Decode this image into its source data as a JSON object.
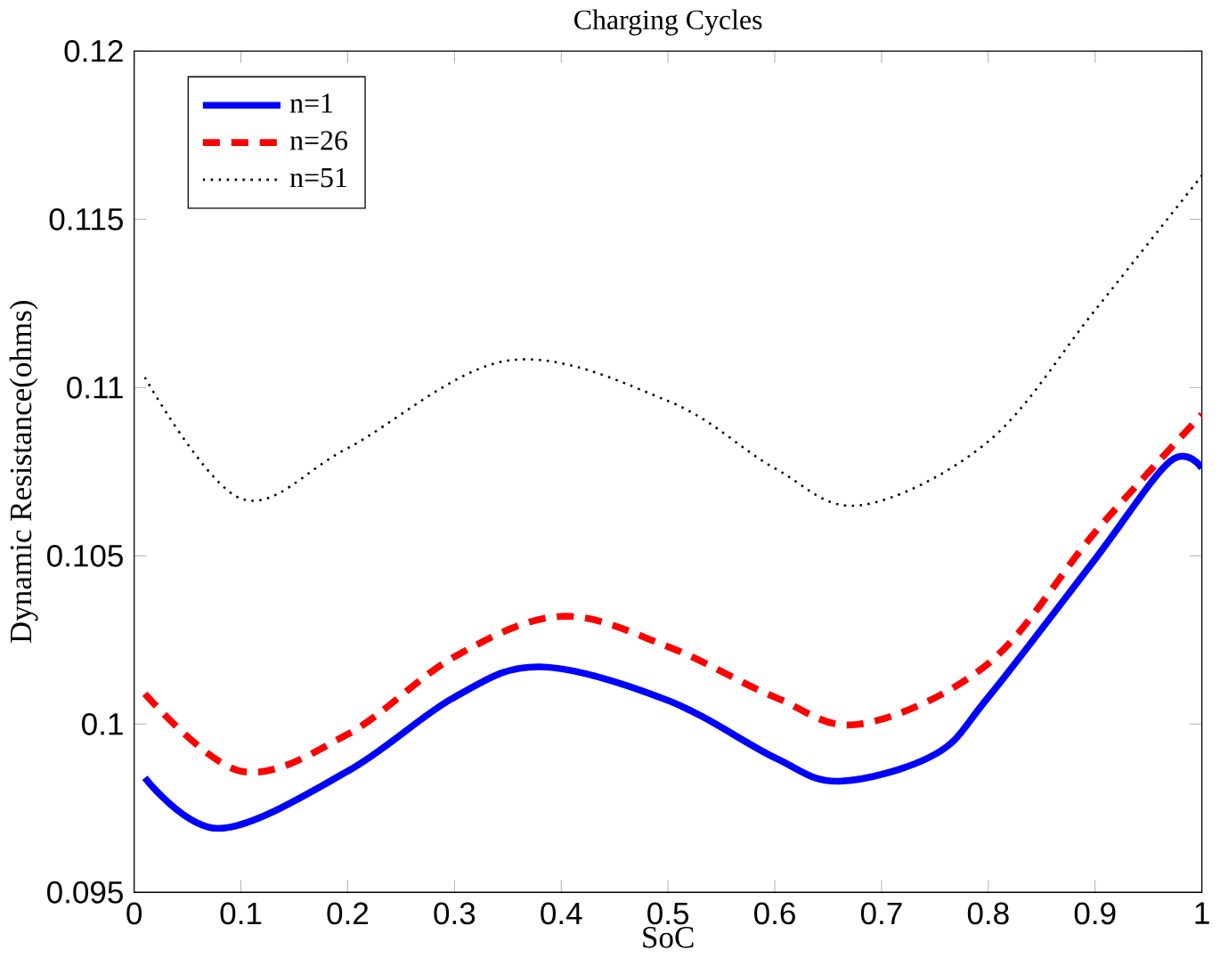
{
  "chart_data": {
    "type": "line",
    "title": "Charging Cycles",
    "xlabel": "SoC",
    "ylabel": "Dynamic Resistance(ohms)",
    "xlim": [
      0,
      1
    ],
    "ylim": [
      0.095,
      0.12
    ],
    "xticks": [
      0,
      0.1,
      0.2,
      0.3,
      0.4,
      0.5,
      0.6,
      0.7,
      0.8,
      0.9,
      1
    ],
    "yticks": [
      0.095,
      0.1,
      0.105,
      0.11,
      0.115,
      0.12
    ],
    "legend": "top left",
    "grid": false,
    "series": [
      {
        "name": "n=1",
        "color": "#0000ff",
        "line_style": "solid",
        "x": [
          0.01,
          0.08,
          0.2,
          0.3,
          0.38,
          0.5,
          0.6,
          0.66,
          0.75,
          0.8,
          0.9,
          0.97,
          1.0
        ],
        "values": [
          0.0984,
          0.0969,
          0.0986,
          0.1008,
          0.1017,
          0.1007,
          0.099,
          0.0983,
          0.0991,
          0.1008,
          0.1049,
          0.1078,
          0.1076
        ]
      },
      {
        "name": "n=26",
        "color": "#ff0000",
        "line_style": "dashed",
        "x": [
          0.01,
          0.1,
          0.2,
          0.3,
          0.4,
          0.5,
          0.6,
          0.68,
          0.8,
          0.9,
          1.0
        ],
        "values": [
          0.1009,
          0.0986,
          0.0997,
          0.102,
          0.1032,
          0.1023,
          0.1008,
          0.1,
          0.1018,
          0.1057,
          0.1092
        ]
      },
      {
        "name": "n=51",
        "color": "#000000",
        "line_style": "dotted",
        "x": [
          0.01,
          0.1,
          0.2,
          0.35,
          0.5,
          0.6,
          0.68,
          0.8,
          0.9,
          1.0
        ],
        "values": [
          0.1103,
          0.1067,
          0.1082,
          0.1108,
          0.1096,
          0.1076,
          0.1065,
          0.1084,
          0.1123,
          0.1163
        ]
      }
    ]
  }
}
